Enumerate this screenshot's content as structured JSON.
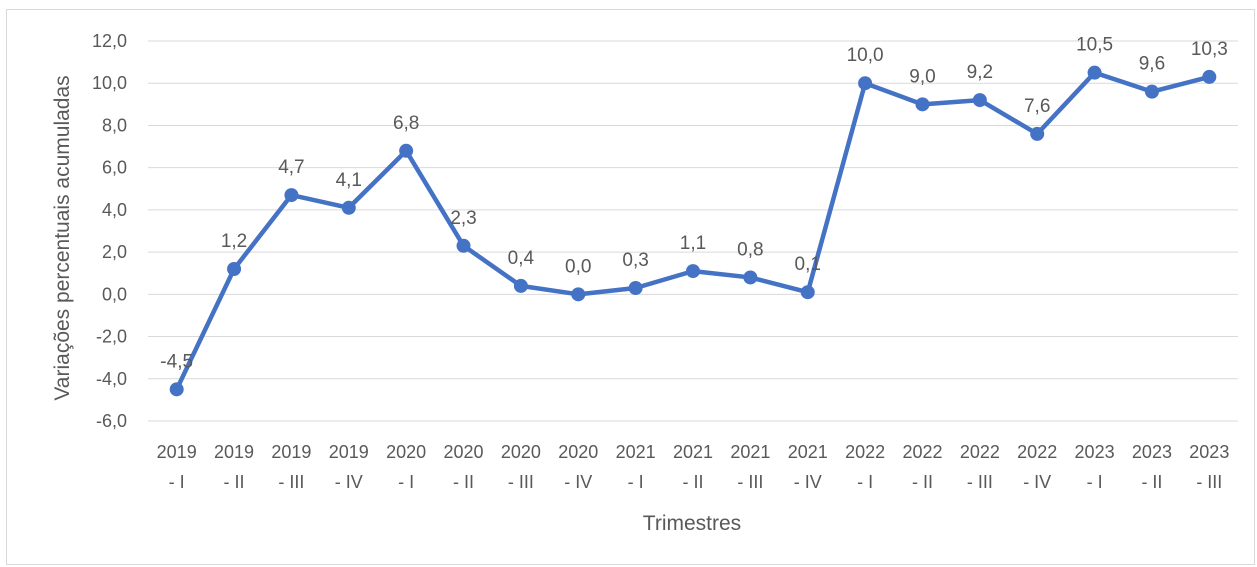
{
  "chart_data": {
    "type": "line",
    "title": "",
    "xlabel": "Trimestres",
    "ylabel": "Variações percentuais acumuladas",
    "ylim": [
      -6,
      12
    ],
    "yticks": [
      "12,0",
      "10,0",
      "8,0",
      "6,0",
      "4,0",
      "2,0",
      "0,0",
      "-2,0",
      "-4,0",
      "-6,0"
    ],
    "grid": true,
    "legend": "none",
    "series_color": "#4472c4",
    "categories": [
      [
        "2019",
        "- I"
      ],
      [
        "2019",
        "- II"
      ],
      [
        "2019",
        "- III"
      ],
      [
        "2019",
        "- IV"
      ],
      [
        "2020",
        "- I"
      ],
      [
        "2020",
        "- II"
      ],
      [
        "2020",
        "- III"
      ],
      [
        "2020",
        "- IV"
      ],
      [
        "2021",
        "- I"
      ],
      [
        "2021",
        "- II"
      ],
      [
        "2021",
        "- III"
      ],
      [
        "2021",
        "- IV"
      ],
      [
        "2022",
        "- I"
      ],
      [
        "2022",
        "- II"
      ],
      [
        "2022",
        "- III"
      ],
      [
        "2022",
        "- IV"
      ],
      [
        "2023",
        "- I"
      ],
      [
        "2023",
        "- II"
      ],
      [
        "2023",
        "- III"
      ]
    ],
    "values": [
      -4.5,
      1.2,
      4.7,
      4.1,
      6.8,
      2.3,
      0.4,
      0.0,
      0.3,
      1.1,
      0.8,
      0.1,
      10.0,
      9.0,
      9.2,
      7.6,
      10.5,
      9.6,
      10.3
    ],
    "value_labels": [
      "-4,5",
      "1,2",
      "4,7",
      "4,1",
      "6,8",
      "2,3",
      "0,4",
      "0,0",
      "0,3",
      "1,1",
      "0,8",
      "0,1",
      "10,0",
      "9,0",
      "9,2",
      "7,6",
      "10,5",
      "9,6",
      "10,3"
    ]
  }
}
